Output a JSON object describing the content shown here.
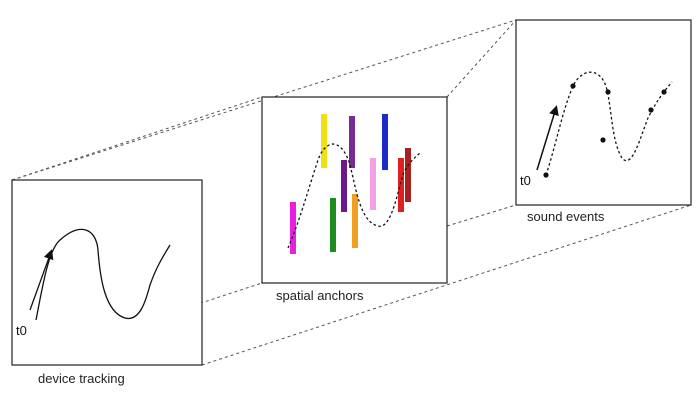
{
  "panels": [
    {
      "key": "device",
      "caption": "device tracking",
      "time_marker": "t0"
    },
    {
      "key": "anchors",
      "caption": "spatial anchors",
      "anchor_colors": [
        "#e81ee0",
        "#1f8c1f",
        "#f0e012",
        "#6a1a8a",
        "#f0a020",
        "#7a2a90",
        "#f2a0e8",
        "#1c2ac8",
        "#e02020",
        "#a82020"
      ]
    },
    {
      "key": "sound",
      "caption": "sound events",
      "time_marker": "t0"
    }
  ],
  "colors": {
    "frame": "#222222",
    "curve": "#111111",
    "connector": "#555555"
  }
}
